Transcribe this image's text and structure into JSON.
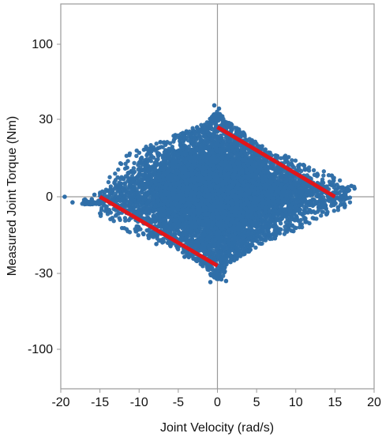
{
  "chart_data": {
    "type": "scatter",
    "title": "",
    "xlabel": "Joint Velocity (rad/s)",
    "ylabel": "Measured Joint Torque (Nm)",
    "xlim": [
      -20,
      20
    ],
    "y_tick_values": [
      100,
      30,
      0,
      -30,
      -100
    ],
    "y_tick_labels": [
      "100",
      "30",
      "0",
      "-30",
      "-100"
    ],
    "y_scale_note": "non-uniform tick spacing",
    "x_ticks": [
      -20,
      -15,
      -10,
      -5,
      0,
      5,
      10,
      15,
      20
    ],
    "x_tick_labels": [
      "-20",
      "-15",
      "-10",
      "-5",
      "0",
      "5",
      "10",
      "15",
      "20"
    ],
    "grid": false,
    "zero_lines": true,
    "colors": {
      "points": "#2f6ea8",
      "fit_lines": "#e0161b",
      "zero_lines": "#9a9a9a",
      "frame": "#9a9a9a"
    },
    "scatter_envelope": {
      "points": [
        {
          "x": -19.5,
          "y": 0
        },
        {
          "x": -18.5,
          "y": -2
        },
        {
          "x": -15,
          "y": 3
        },
        {
          "x": -15,
          "y": -1
        },
        {
          "x": -13,
          "y": 10
        },
        {
          "x": -12,
          "y": 18
        },
        {
          "x": -10,
          "y": 20
        },
        {
          "x": -8,
          "y": 21
        },
        {
          "x": -5,
          "y": 24
        },
        {
          "x": -2,
          "y": 27
        },
        {
          "x": 0,
          "y": 32
        },
        {
          "x": 0,
          "y": 43
        },
        {
          "x": 1,
          "y": 31
        },
        {
          "x": 3,
          "y": 24
        },
        {
          "x": 6,
          "y": 19
        },
        {
          "x": 10,
          "y": 12
        },
        {
          "x": 13,
          "y": 9
        },
        {
          "x": 15,
          "y": 6
        },
        {
          "x": 17,
          "y": 5
        },
        {
          "x": 17.5,
          "y": 3
        },
        {
          "x": 16.5,
          "y": -1
        },
        {
          "x": 15,
          "y": -5
        },
        {
          "x": 12,
          "y": -7
        },
        {
          "x": 10,
          "y": -10
        },
        {
          "x": 6,
          "y": -15
        },
        {
          "x": 3,
          "y": -20
        },
        {
          "x": 1,
          "y": -28
        },
        {
          "x": 0.5,
          "y": -36
        },
        {
          "x": -0.5,
          "y": -38
        },
        {
          "x": -2,
          "y": -34
        },
        {
          "x": -3,
          "y": -25
        },
        {
          "x": -6,
          "y": -21
        },
        {
          "x": -10,
          "y": -18
        },
        {
          "x": -13,
          "y": -15
        },
        {
          "x": -15,
          "y": -8
        }
      ]
    },
    "fit_lines": [
      {
        "x": [
          0,
          15
        ],
        "y": [
          27,
          0
        ]
      },
      {
        "x": [
          -15,
          0
        ],
        "y": [
          0,
          -27
        ]
      }
    ]
  }
}
